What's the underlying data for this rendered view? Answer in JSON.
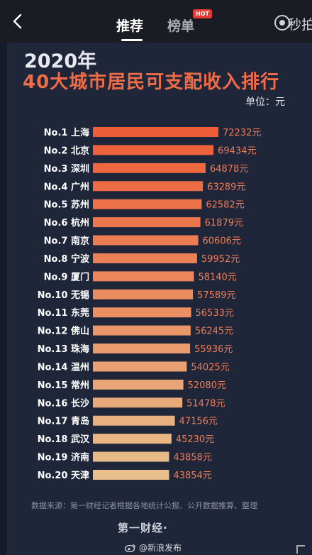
{
  "topbar": {
    "tabs": [
      {
        "label": "推荐",
        "active": true
      },
      {
        "label": "榜单",
        "active": false
      }
    ],
    "hot_badge": "HOT",
    "brand_text": "秒拍"
  },
  "chart_data": {
    "type": "bar",
    "orientation": "horizontal",
    "title_year": "2020年",
    "title": "40大城市居民可支配收入排行",
    "unit_label": "单位：元",
    "categories": [
      "No.1 上海",
      "No.2 北京",
      "No.3 深圳",
      "No.4 广州",
      "No.5 苏州",
      "No.6 杭州",
      "No.7 南京",
      "No.8 宁波",
      "No.9 厦门",
      "No.10 无锡",
      "No.11 东莞",
      "No.12 佛山",
      "No.13 珠海",
      "No.14 温州",
      "No.15 常州",
      "No.16 长沙",
      "No.17 青岛",
      "No.18 武汉",
      "No.19 济南",
      "No.20 天津"
    ],
    "values": [
      72232,
      69434,
      64878,
      63289,
      62582,
      61879,
      60606,
      59952,
      58140,
      57589,
      56533,
      56245,
      55936,
      54025,
      52080,
      51478,
      47156,
      45230,
      43858,
      43854
    ],
    "value_labels": [
      "72232元",
      "69434元",
      "64878元",
      "63289元",
      "62582元",
      "61879元",
      "60606元",
      "59952元",
      "58140元",
      "57589元",
      "56533元",
      "56245元",
      "55936元",
      "54025元",
      "52080元",
      "51478元",
      "47156元",
      "45230元",
      "43858元",
      "43854元"
    ],
    "color_start": "#ee5d38",
    "color_end": "#e8bf8c",
    "value_color": "#ef7d56",
    "grid": false
  },
  "footer": {
    "source": "数据来源：第一财经记者根据各地统计公报、公开数据推算、整理",
    "logo": "第一财经·",
    "watermark": "@新浪发布"
  }
}
